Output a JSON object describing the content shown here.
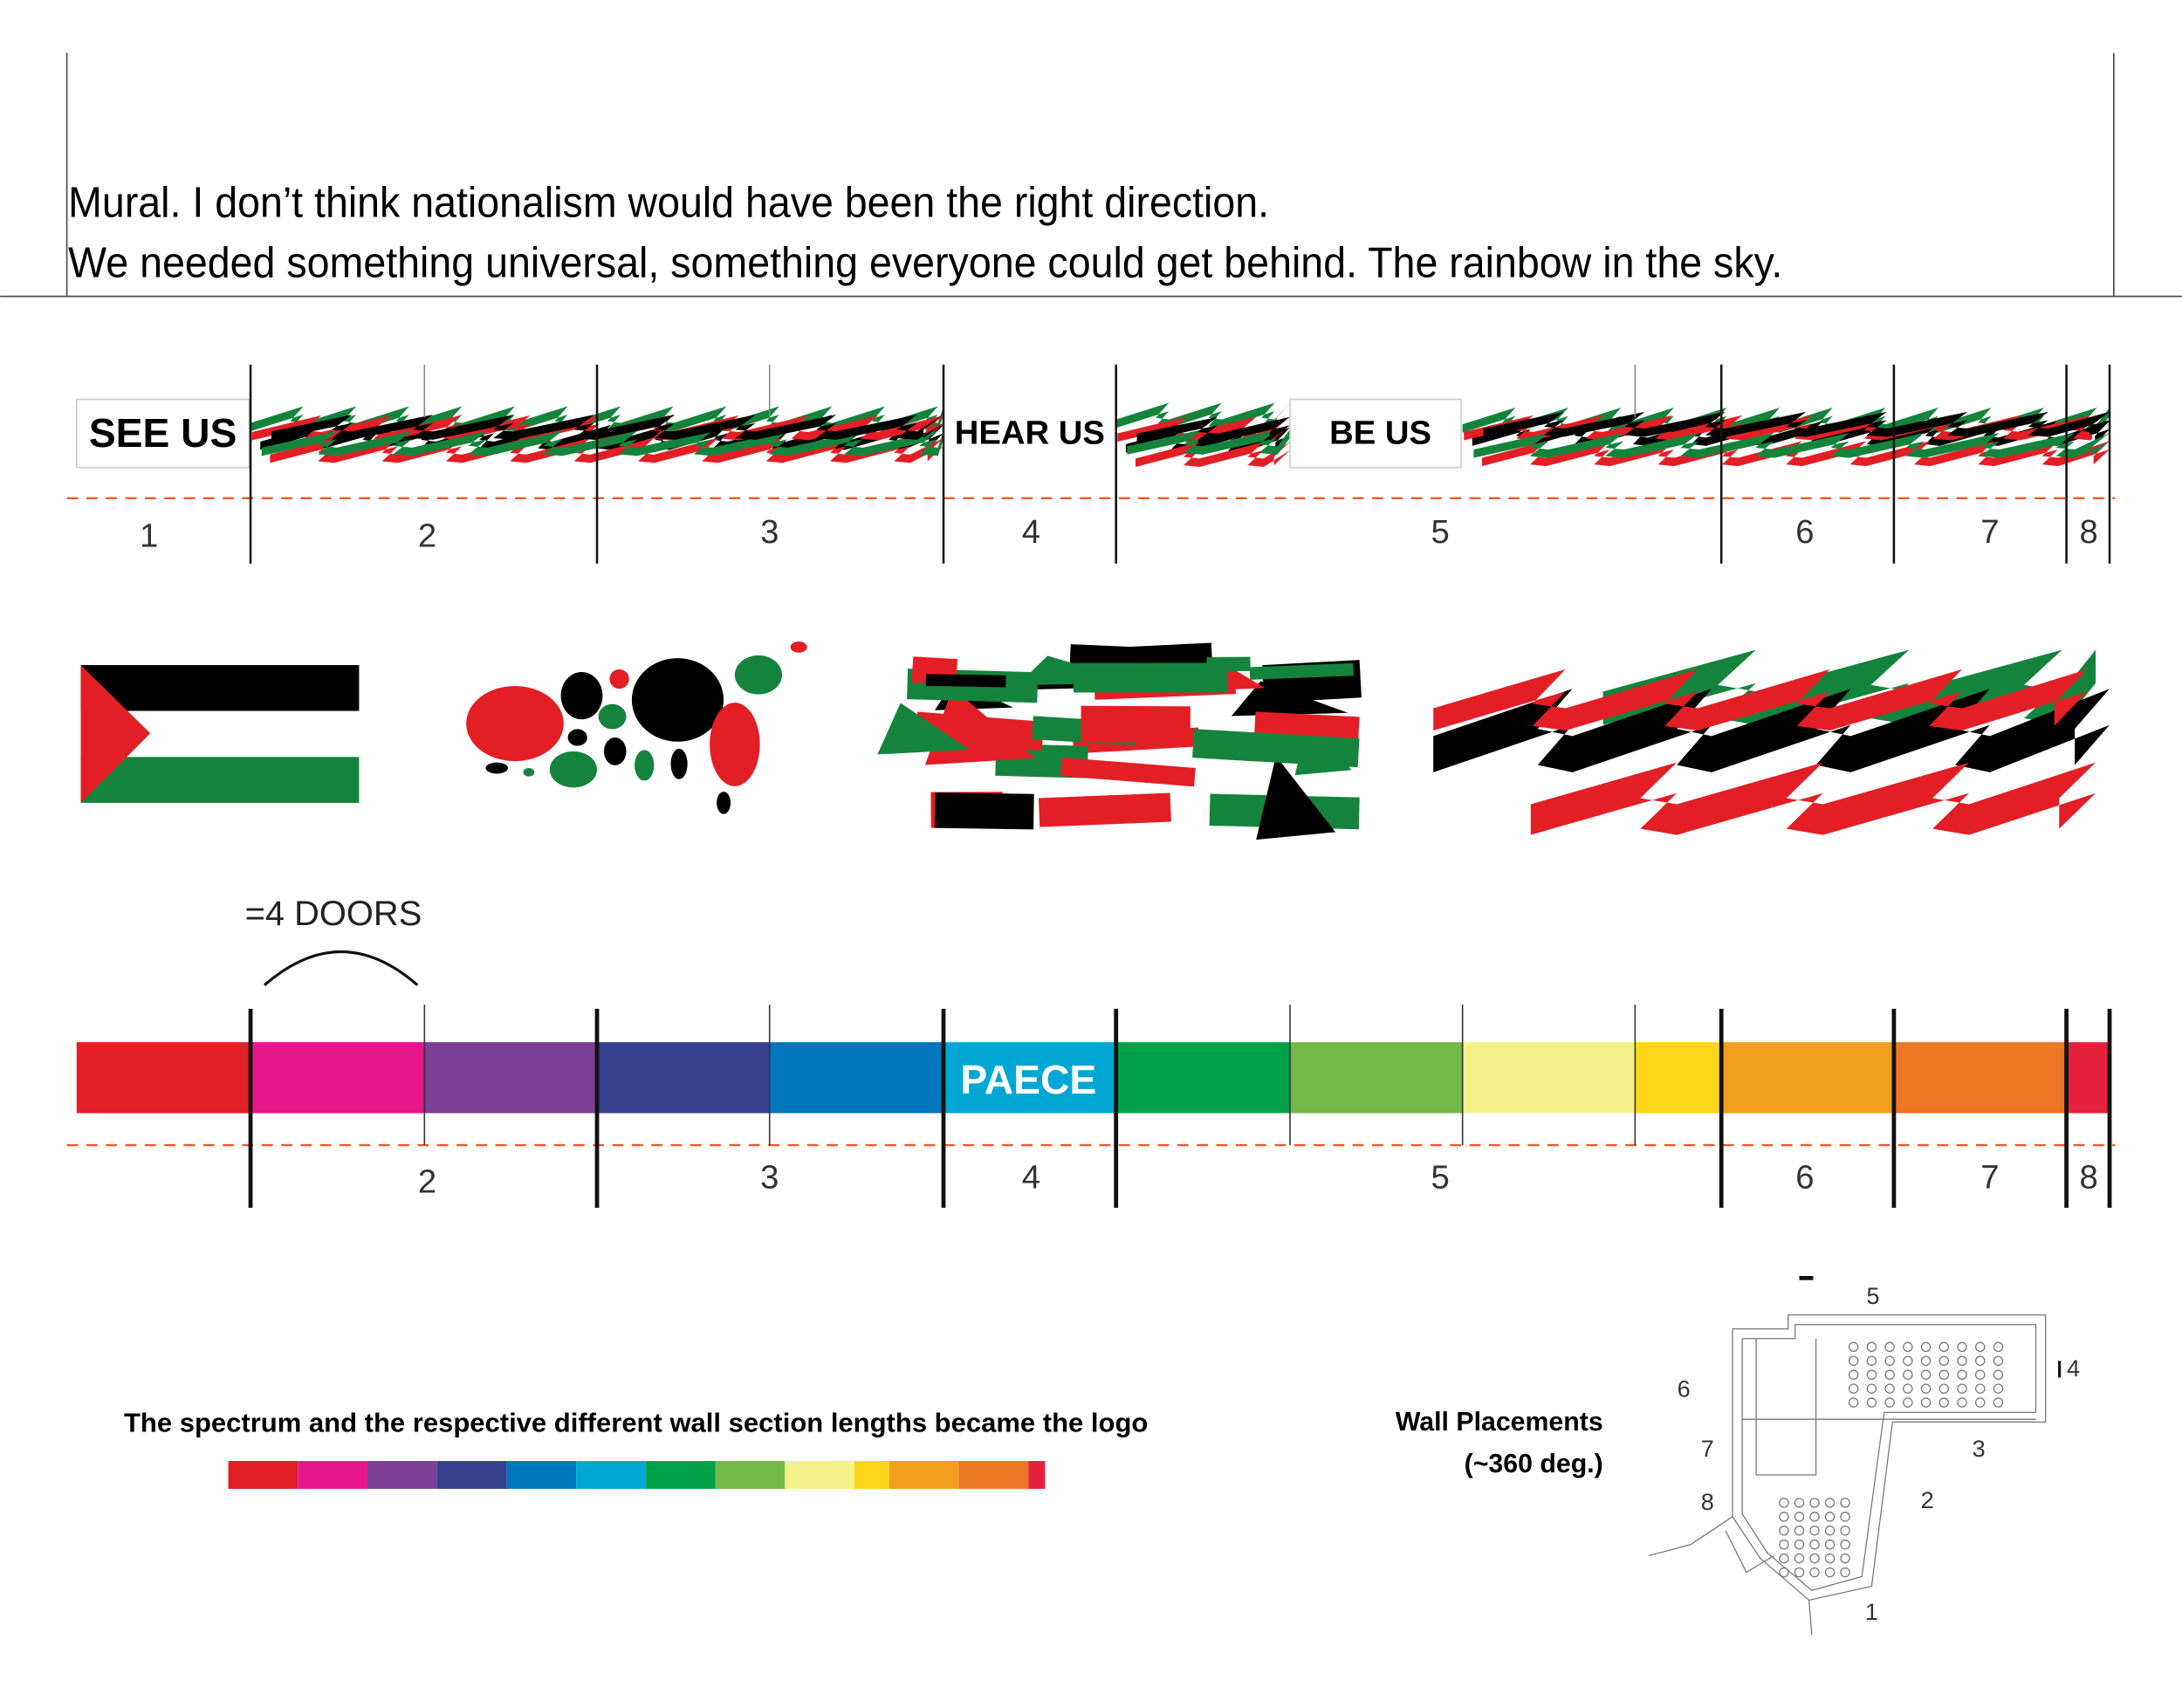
{
  "header": {
    "lines": [
      "Mural. I don’t think nationalism would have been the right direction.",
      "We needed something universal, something everyone could get behind. The rainbow in the sky."
    ]
  },
  "mural": {
    "panels": [
      "SEE US",
      "HEAR US",
      "BE US"
    ],
    "section_numbers": [
      "1",
      "2",
      "3",
      "4",
      "5",
      "6",
      "7",
      "8"
    ]
  },
  "spectrum": {
    "note": "=4 DOORS",
    "word": "PAECE",
    "section_numbers": [
      "2",
      "3",
      "4",
      "5",
      "6",
      "7",
      "8"
    ]
  },
  "logo": {
    "caption": "The spectrum and the respective different wall section lengths became the logo"
  },
  "plan": {
    "title": "Wall Placements",
    "subtitle": "(~360 deg.)",
    "wall_numbers": [
      "1",
      "2",
      "3",
      "4",
      "5",
      "6",
      "7",
      "8"
    ]
  }
}
